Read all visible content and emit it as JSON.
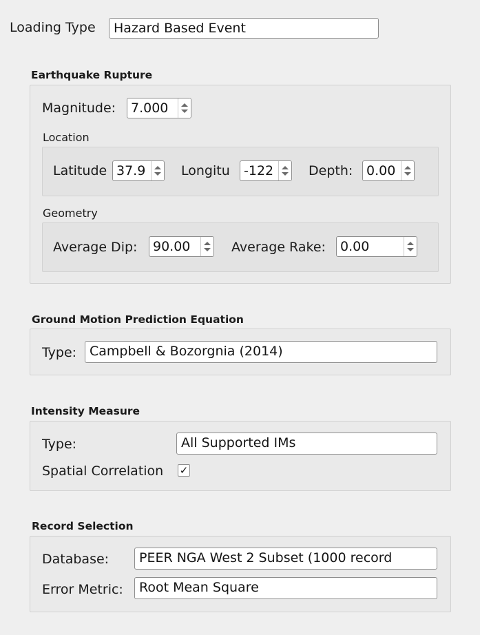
{
  "loading_type": {
    "label": "Loading Type",
    "value": "Hazard Based Event"
  },
  "earthquake_rupture": {
    "title": "Earthquake Rupture",
    "magnitude": {
      "label": "Magnitude:",
      "value": "7.000"
    },
    "location": {
      "title": "Location",
      "latitude": {
        "label": "Latitude",
        "value": "37.9"
      },
      "longitude": {
        "label": "Longitu",
        "value": "-122"
      },
      "depth": {
        "label": "Depth:",
        "value": "0.00"
      }
    },
    "geometry": {
      "title": "Geometry",
      "average_dip": {
        "label": "Average Dip:",
        "value": "90.00"
      },
      "average_rake": {
        "label": "Average Rake:",
        "value": "0.00"
      }
    }
  },
  "gmpe": {
    "title": "Ground Motion Prediction Equation",
    "type_label": "Type:",
    "type_value": "Campbell & Bozorgnia (2014)"
  },
  "intensity_measure": {
    "title": "Intensity Measure",
    "type_label": "Type:",
    "type_value": "All Supported IMs",
    "spatial_correlation_label": "Spatial Correlation",
    "spatial_correlation_checked": "✓"
  },
  "record_selection": {
    "title": "Record Selection",
    "database_label": "Database:",
    "database_value": "PEER NGA West 2 Subset (1000 record",
    "error_metric_label": "Error Metric:",
    "error_metric_value": "Root Mean Square"
  }
}
